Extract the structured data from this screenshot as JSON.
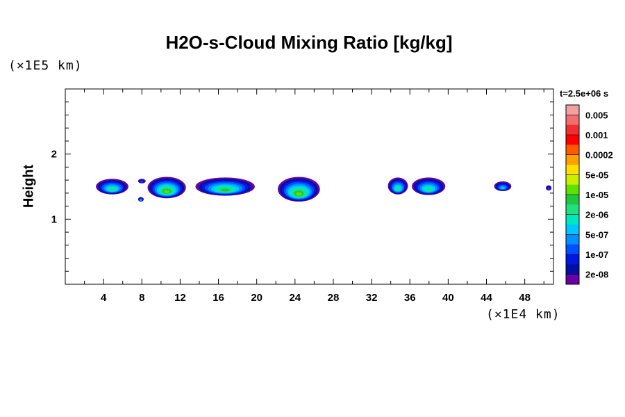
{
  "chart_data": {
    "type": "heatmap",
    "title": "H2O-s-Cloud Mixing Ratio [kg/kg]",
    "ylabel": "Height",
    "y_unit": "(×1E5 km)",
    "x_unit": "(×1E4 km)",
    "time_label": "t=2.5e+06 s",
    "x_ticks": [
      "4",
      "8",
      "12",
      "16",
      "20",
      "24",
      "28",
      "32",
      "36",
      "40",
      "44",
      "48"
    ],
    "y_ticks": [
      "1",
      "2"
    ],
    "xlim": [
      0,
      51
    ],
    "ylim": [
      0,
      3
    ],
    "grid": false,
    "colorbar": {
      "placement": "right",
      "labels": [
        "0.005",
        "0.001",
        "0.0002",
        "5e-05",
        "1e-05",
        "2e-06",
        "5e-07",
        "1e-07",
        "2e-08"
      ],
      "colors": [
        "#f4a0a0",
        "#f07070",
        "#f03030",
        "#ff0000",
        "#ff5a00",
        "#ffa000",
        "#ffe000",
        "#c8f000",
        "#60e000",
        "#20c840",
        "#20e080",
        "#00e8c0",
        "#00c8ff",
        "#0090ff",
        "#0050ff",
        "#0018e0",
        "#0010a0",
        "#6a00a8"
      ]
    },
    "clouds": [
      {
        "x": [
          3.2,
          6.6
        ],
        "y": [
          1.38,
          1.62
        ],
        "peak": 8
      },
      {
        "x": [
          7.6,
          8.4
        ],
        "y": [
          1.55,
          1.62
        ],
        "peak": 4
      },
      {
        "x": [
          7.6,
          8.2
        ],
        "y": [
          1.27,
          1.34
        ],
        "peak": 6
      },
      {
        "x": [
          8.6,
          12.6
        ],
        "y": [
          1.32,
          1.65
        ],
        "peak": 10
      },
      {
        "x": [
          13.6,
          19.8
        ],
        "y": [
          1.36,
          1.64
        ],
        "peak": 9
      },
      {
        "x": [
          22.2,
          26.6
        ],
        "y": [
          1.27,
          1.65
        ],
        "peak": 10
      },
      {
        "x": [
          33.7,
          35.8
        ],
        "y": [
          1.38,
          1.64
        ],
        "peak": 8
      },
      {
        "x": [
          36.2,
          39.7
        ],
        "y": [
          1.37,
          1.64
        ],
        "peak": 8
      },
      {
        "x": [
          44.8,
          46.6
        ],
        "y": [
          1.43,
          1.58
        ],
        "peak": 6
      },
      {
        "x": [
          50.2,
          50.8
        ],
        "y": [
          1.44,
          1.52
        ],
        "peak": 4
      }
    ]
  }
}
